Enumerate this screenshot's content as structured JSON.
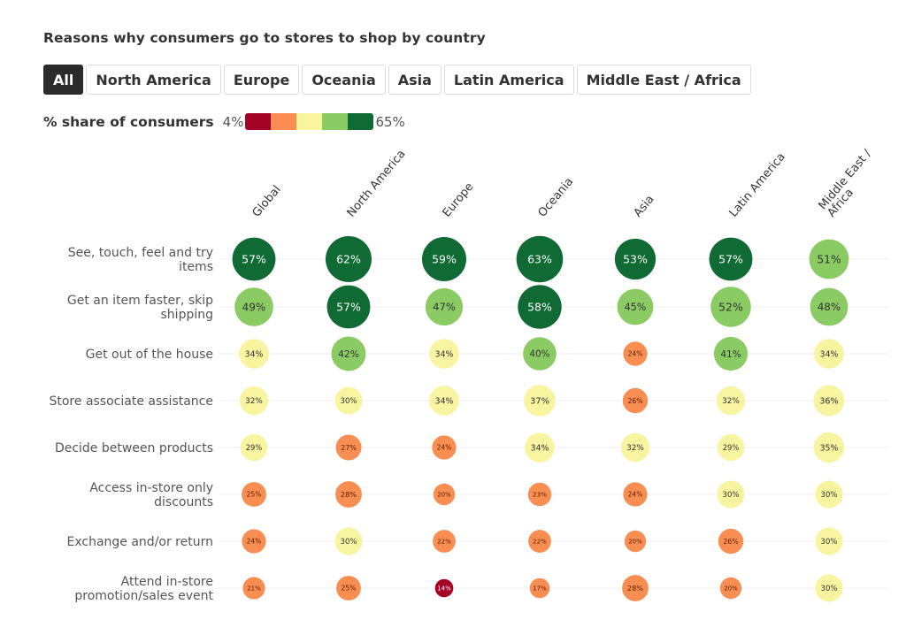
{
  "title": "Reasons why consumers go to stores to shop by country",
  "tabs": [
    {
      "label": "All",
      "active": true
    },
    {
      "label": "North America",
      "active": false
    },
    {
      "label": "Europe",
      "active": false
    },
    {
      "label": "Oceania",
      "active": false
    },
    {
      "label": "Asia",
      "active": false
    },
    {
      "label": "Latin America",
      "active": false
    },
    {
      "label": "Middle East / Africa",
      "active": false
    }
  ],
  "legend": {
    "label": "% share of consumers",
    "min": "4%",
    "max": "65%",
    "colors": [
      "#a50026",
      "#f98e52",
      "#f8f4a0",
      "#8acc63",
      "#0f6a33"
    ]
  },
  "chart_data": {
    "type": "heatmap",
    "title": "Reasons why consumers go to stores to shop by country",
    "legend_title": "% share of consumers",
    "color_range": [
      4,
      65
    ],
    "columns": [
      "Global",
      "North America",
      "Europe",
      "Oceania",
      "Asia",
      "Latin America",
      "Middle East / Africa"
    ],
    "rows": [
      "See, touch, feel and try items",
      "Get an item faster, skip shipping",
      "Get out of the house",
      "Store associate assistance",
      "Decide between products",
      "Access in-store only discounts",
      "Exchange and/or return",
      "Attend in-store promotion/sales event"
    ],
    "values": [
      [
        57,
        62,
        59,
        63,
        53,
        57,
        51
      ],
      [
        49,
        57,
        47,
        58,
        45,
        52,
        48
      ],
      [
        34,
        42,
        34,
        40,
        24,
        41,
        34
      ],
      [
        32,
        30,
        34,
        37,
        26,
        32,
        36
      ],
      [
        29,
        27,
        24,
        34,
        32,
        29,
        35
      ],
      [
        25,
        28,
        20,
        23,
        24,
        30,
        30
      ],
      [
        24,
        30,
        22,
        22,
        20,
        26,
        30
      ],
      [
        21,
        25,
        14,
        17,
        28,
        20,
        30
      ]
    ],
    "unit": "%",
    "encoding": "circle size and color proportional to value"
  }
}
